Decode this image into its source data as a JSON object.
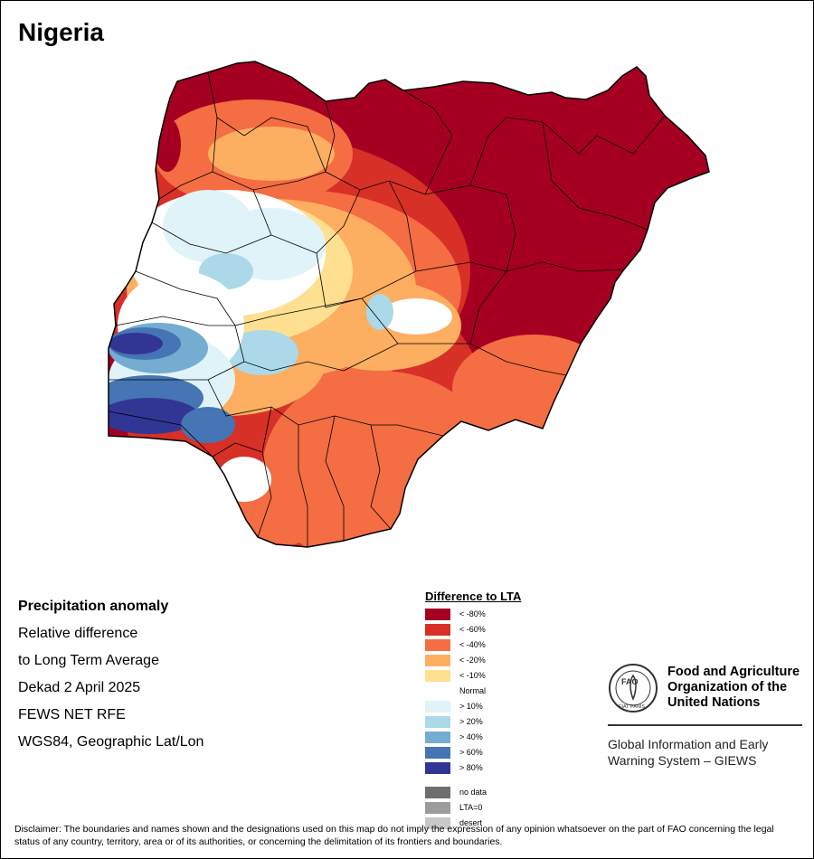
{
  "title": "Nigeria",
  "info": {
    "heading": "Precipitation anomaly",
    "lines": [
      "Relative difference",
      "to Long Term Average",
      "Dekad 2 April 2025",
      "FEWS NET RFE",
      "WGS84, Geographic Lat/Lon"
    ]
  },
  "legend": {
    "title": "Difference to LTA",
    "items": [
      {
        "label": "< -80%",
        "color": "#a50022"
      },
      {
        "label": "< -60%",
        "color": "#d73027"
      },
      {
        "label": "< -40%",
        "color": "#f46d43"
      },
      {
        "label": "< -20%",
        "color": "#fdae61"
      },
      {
        "label": "< -10%",
        "color": "#fee090"
      },
      {
        "label": "Normal",
        "color": "#ffffff"
      },
      {
        "label": "> 10%",
        "color": "#e0f3f8"
      },
      {
        "label": "> 20%",
        "color": "#abd9e9"
      },
      {
        "label": "> 40%",
        "color": "#74add1"
      },
      {
        "label": "> 60%",
        "color": "#4575b4"
      },
      {
        "label": "> 80%",
        "color": "#313695"
      }
    ],
    "extra": [
      {
        "label": "no data",
        "color": "#6e6e6e"
      },
      {
        "label": "LTA=0",
        "color": "#9c9c9c"
      },
      {
        "label": "desert",
        "color": "#c8c8c8"
      }
    ]
  },
  "org": {
    "name_lines": [
      "Food and Agriculture",
      "Organization of the",
      "United Nations"
    ],
    "giews_lines": [
      "Global Information and Early",
      "Warning System – GIEWS"
    ],
    "logo_text": "FAO",
    "logo_motto": "FIAT PANIS"
  },
  "disclaimer": "Disclaimer: The boundaries and names shown and the designations used on this map do not imply the expression of any opinion whatsoever on the part of FAO concerning the legal status of any country, territory, area or of its authorities, or concerning the delimitation of its frontiers and boundaries."
}
